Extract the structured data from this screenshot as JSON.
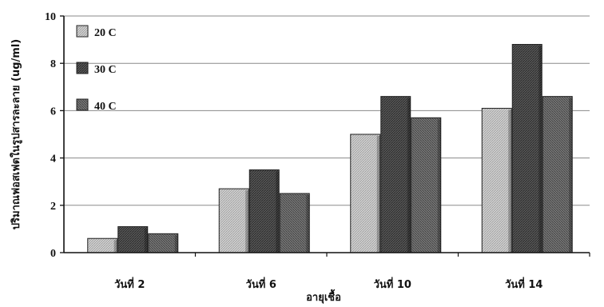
{
  "chart_data": {
    "type": "bar",
    "categories": [
      "วันที่ 2",
      "วันที่ 6",
      "วันที่ 10",
      "วันที่ 14"
    ],
    "series": [
      {
        "name": "20 C",
        "values": [
          0.6,
          2.7,
          5.0,
          6.1
        ],
        "pattern": "light"
      },
      {
        "name": "30 C",
        "values": [
          1.1,
          3.5,
          6.6,
          8.8
        ],
        "pattern": "dark"
      },
      {
        "name": "40 C",
        "values": [
          0.8,
          2.5,
          5.7,
          6.6
        ],
        "pattern": "medium"
      }
    ],
    "title": "",
    "xlabel": "อายุเชื้อ",
    "ylabel": "ปริมาณฟอสเฟตในรูปสารละลาย (ug/ml)",
    "ylim": [
      0,
      10
    ],
    "yticks": [
      0,
      2,
      4,
      6,
      8,
      10
    ],
    "grid": true,
    "legend": "top-left",
    "colors": {
      "light": "#c8c8c8",
      "medium": "#6a6a6a",
      "dark": "#4a4a4a"
    }
  }
}
